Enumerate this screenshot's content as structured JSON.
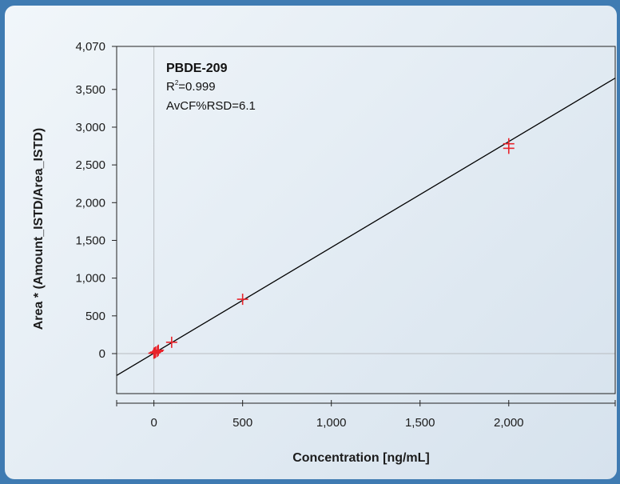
{
  "chart_data": {
    "type": "scatter",
    "title": "",
    "xlabel": "Concentration [ng/mL]",
    "ylabel": "Area * (Amount_ISTD/Area_ISTD)",
    "xlim": [
      -210,
      2600
    ],
    "ylim": [
      -530,
      4070
    ],
    "x_ticks": [
      0,
      500,
      1000,
      1500,
      2000
    ],
    "x_tick_labels": [
      "0",
      "500",
      "1,000",
      "1,500",
      "2,000"
    ],
    "y_ticks": [
      0,
      500,
      1000,
      1500,
      2000,
      2500,
      3000,
      3500,
      4070
    ],
    "y_tick_labels": [
      "0",
      "500",
      "1,000",
      "1,500",
      "2,000",
      "2,500",
      "3,000",
      "3,500",
      "4,070"
    ],
    "zero_lines": true,
    "annotation": {
      "title": "PBDE-209",
      "r2_prefix": "R",
      "r2_sup": "2",
      "r2_value": "=0.999",
      "rsd": "AvCF%RSD=6.1"
    },
    "series": [
      {
        "type": "points",
        "marker": "plus",
        "color": "#e8232a",
        "points": [
          {
            "x": 0,
            "y": 5
          },
          {
            "x": 5,
            "y": 10
          },
          {
            "x": 10,
            "y": 20
          },
          {
            "x": 20,
            "y": 30
          },
          {
            "x": 25,
            "y": 45
          },
          {
            "x": 100,
            "y": 150
          },
          {
            "x": 500,
            "y": 720
          },
          {
            "x": 2000,
            "y": 2720
          },
          {
            "x": 2000,
            "y": 2780
          }
        ]
      },
      {
        "type": "line",
        "fit": "linear",
        "color": "#000000",
        "points": [
          {
            "x": -210,
            "y": -290
          },
          {
            "x": 2600,
            "y": 3650
          }
        ]
      }
    ]
  }
}
